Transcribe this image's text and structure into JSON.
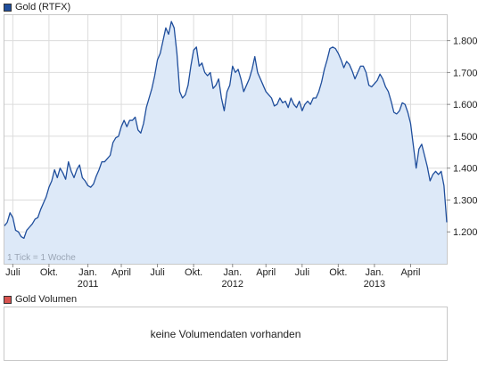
{
  "price_legend": {
    "label": "Gold (RTFX)",
    "color": "#1f4e9c"
  },
  "volume_legend": {
    "label": "Gold Volumen",
    "color": "#d9534f"
  },
  "volume_message": "keine Volumendaten vorhanden",
  "tick_note": "1 Tick = 1 Woche",
  "chart_data": {
    "type": "area",
    "title": "Gold (RTFX)",
    "xlabel": "",
    "ylabel": "",
    "ylim": [
      1100,
      1880
    ],
    "y_ticks": [
      1200,
      1300,
      1400,
      1500,
      1600,
      1700,
      1800
    ],
    "y_tick_labels": [
      "1.200",
      "1.300",
      "1.400",
      "1.500",
      "1.600",
      "1.700",
      "1.800"
    ],
    "x_ticks": [
      {
        "week": 3,
        "label": "Juli",
        "year": ""
      },
      {
        "week": 16,
        "label": "Okt.",
        "year": ""
      },
      {
        "week": 30,
        "label": "Jan.",
        "year": "2011"
      },
      {
        "week": 42,
        "label": "April",
        "year": ""
      },
      {
        "week": 55,
        "label": "Juli",
        "year": ""
      },
      {
        "week": 68,
        "label": "Okt.",
        "year": ""
      },
      {
        "week": 82,
        "label": "Jan.",
        "year": "2012"
      },
      {
        "week": 94,
        "label": "April",
        "year": ""
      },
      {
        "week": 107,
        "label": "Juli",
        "year": ""
      },
      {
        "week": 120,
        "label": "Okt.",
        "year": ""
      },
      {
        "week": 133,
        "label": "Jan.",
        "year": "2013"
      },
      {
        "week": 146,
        "label": "April",
        "year": ""
      }
    ],
    "grid": true,
    "line_color": "#1f4e9c",
    "fill_color": "#dde9f8",
    "series": [
      {
        "values": [
          1219,
          1230,
          1260,
          1245,
          1205,
          1200,
          1185,
          1180,
          1205,
          1215,
          1225,
          1240,
          1245,
          1270,
          1290,
          1310,
          1340,
          1360,
          1395,
          1370,
          1400,
          1385,
          1365,
          1420,
          1390,
          1370,
          1395,
          1410,
          1370,
          1360,
          1345,
          1340,
          1350,
          1375,
          1395,
          1420,
          1420,
          1430,
          1440,
          1480,
          1495,
          1500,
          1530,
          1550,
          1530,
          1550,
          1550,
          1560,
          1520,
          1510,
          1540,
          1590,
          1620,
          1650,
          1690,
          1740,
          1760,
          1800,
          1840,
          1820,
          1860,
          1840,
          1760,
          1640,
          1620,
          1630,
          1660,
          1720,
          1770,
          1780,
          1720,
          1730,
          1700,
          1690,
          1700,
          1650,
          1660,
          1680,
          1620,
          1580,
          1640,
          1660,
          1720,
          1700,
          1710,
          1680,
          1640,
          1660,
          1680,
          1710,
          1750,
          1700,
          1680,
          1660,
          1640,
          1630,
          1620,
          1595,
          1600,
          1620,
          1605,
          1610,
          1590,
          1620,
          1600,
          1590,
          1610,
          1580,
          1600,
          1610,
          1600,
          1620,
          1620,
          1640,
          1670,
          1710,
          1740,
          1775,
          1780,
          1775,
          1760,
          1740,
          1715,
          1735,
          1725,
          1705,
          1680,
          1700,
          1720,
          1720,
          1700,
          1660,
          1655,
          1665,
          1675,
          1695,
          1680,
          1655,
          1640,
          1610,
          1575,
          1570,
          1580,
          1605,
          1600,
          1575,
          1540,
          1470,
          1400,
          1460,
          1475,
          1440,
          1405,
          1360,
          1380,
          1390,
          1380,
          1390,
          1345,
          1230
        ]
      }
    ]
  }
}
